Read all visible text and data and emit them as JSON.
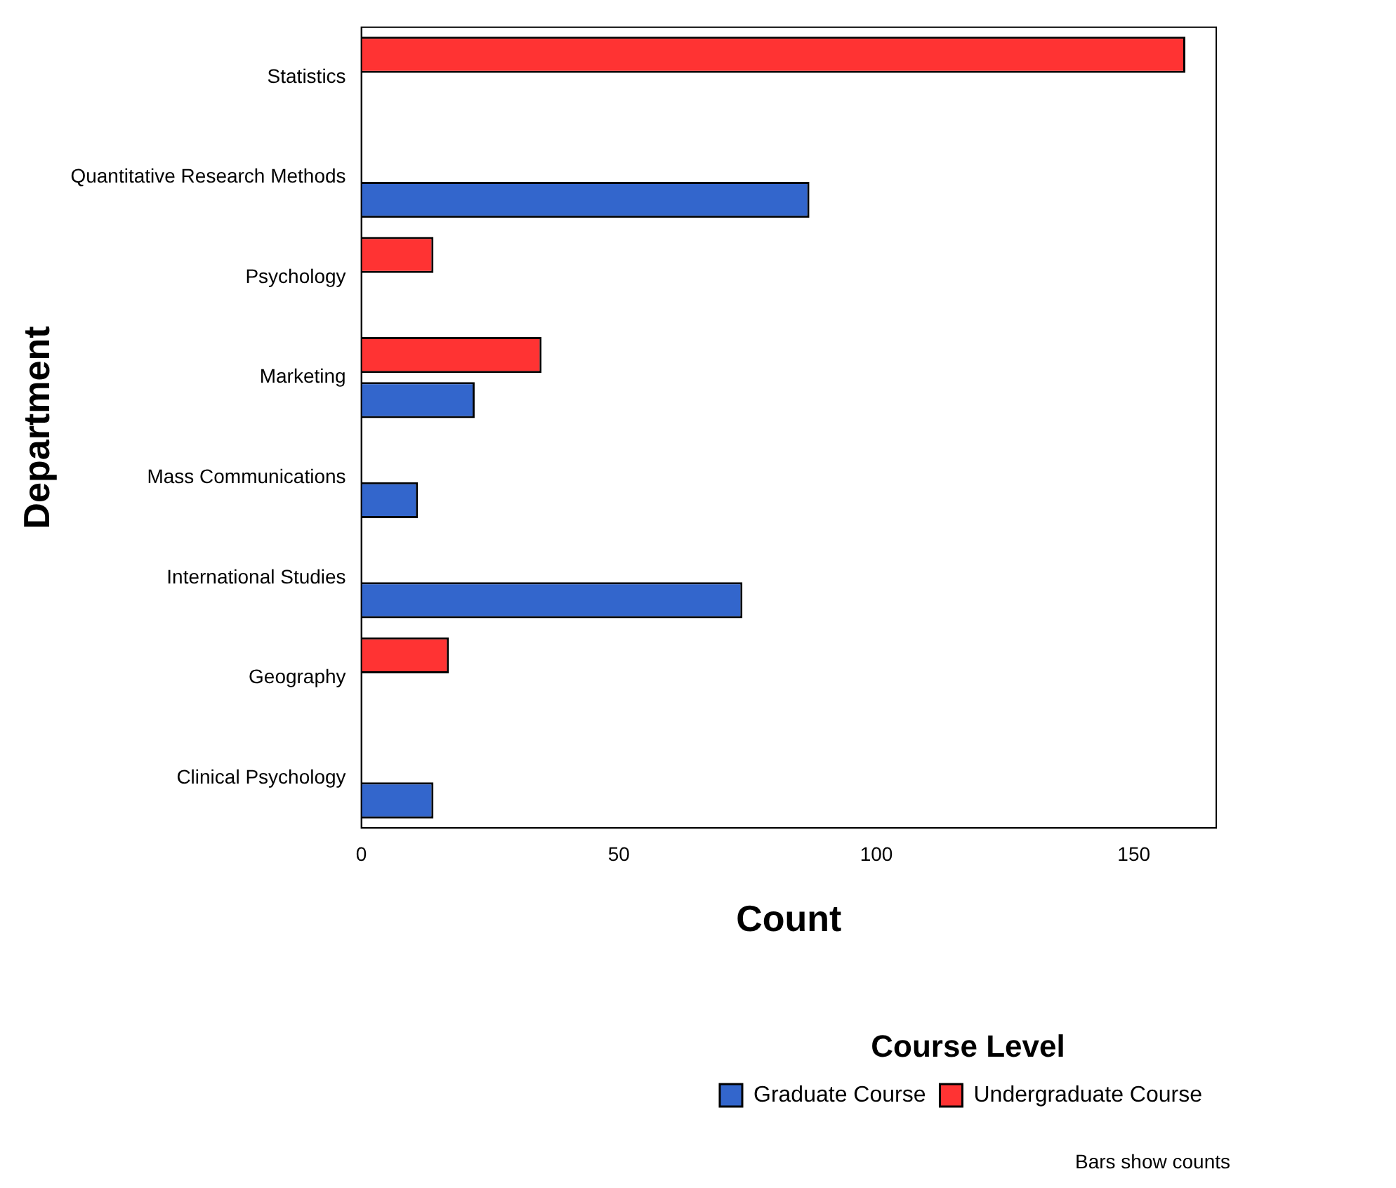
{
  "chart_data": {
    "type": "bar",
    "orientation": "horizontal",
    "categories": [
      "Statistics",
      "Quantitative Research Methods",
      "Psychology",
      "Marketing",
      "Mass Communications",
      "International Studies",
      "Geography",
      "Clinical Psychology"
    ],
    "series": [
      {
        "name": "Undergraduate Course",
        "color": "#ff3333",
        "values": [
          160,
          null,
          14,
          35,
          null,
          null,
          17,
          null
        ]
      },
      {
        "name": "Graduate Course",
        "color": "#3366cc",
        "values": [
          null,
          87,
          null,
          22,
          11,
          74,
          null,
          14
        ]
      }
    ],
    "xlabel": "Count",
    "ylabel": "Department",
    "legend_title": "Course Level",
    "xlim": [
      0,
      166
    ],
    "xticks": [
      0,
      50,
      100,
      150
    ],
    "grid": false,
    "legend": "bottom right",
    "annotations": [
      "Bars show counts"
    ]
  }
}
